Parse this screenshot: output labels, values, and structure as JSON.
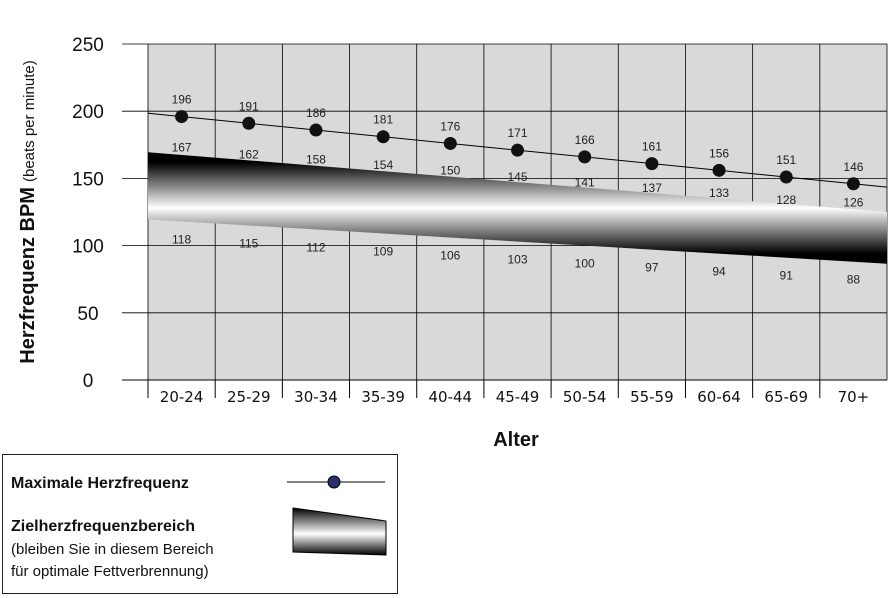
{
  "chart_data": {
    "type": "line",
    "categories": [
      "20-24",
      "25-29",
      "30-34",
      "35-39",
      "40-44",
      "45-49",
      "50-54",
      "55-59",
      "60-64",
      "65-69",
      "70+"
    ],
    "ylim": [
      0,
      250
    ],
    "yticks": [
      0,
      50,
      100,
      150,
      200,
      250
    ],
    "ylabel": "Herzfrequenz BPM",
    "ylabel_sub": "(beats per minute)",
    "xlabel": "Alter",
    "grid": true,
    "series": [
      {
        "name": "Maximale Herzfrequenz",
        "values": [
          196,
          191,
          186,
          181,
          176,
          171,
          166,
          161,
          156,
          151,
          146
        ]
      },
      {
        "name": "Zielherzfrequenzbereich",
        "upper": [
          167,
          162,
          158,
          154,
          150,
          145,
          141,
          137,
          133,
          128,
          126
        ],
        "lower": [
          118,
          115,
          112,
          109,
          106,
          103,
          100,
          97,
          94,
          91,
          88
        ]
      }
    ],
    "colors": {
      "max_line": "#000000",
      "marker": "#111111",
      "band_dark": "#000000",
      "band_light": "#ffffff",
      "grid_bg": "#d9d9d9",
      "legend_marker": "#2b2f6b"
    }
  },
  "legend": {
    "max_label": "Maximale Herzfrequenz",
    "zone_label": "Zielherzfrequenzbereich",
    "zone_note1": "(bleiben Sie in diesem Bereich",
    "zone_note2": "für optimale Fettverbrennung)"
  }
}
